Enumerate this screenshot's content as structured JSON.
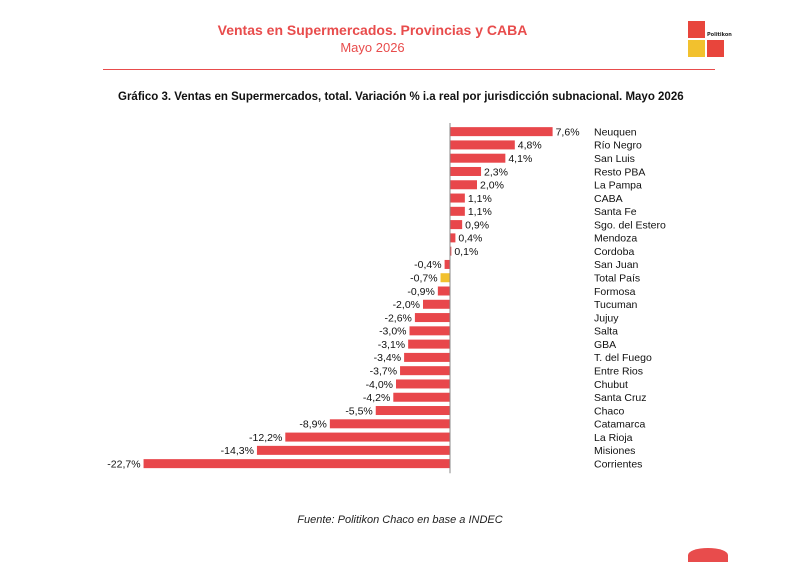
{
  "header": {
    "title": "Ventas en Supermercados. Provincias y CABA",
    "subtitle": "Mayo 2026",
    "logo_text": "Politikon"
  },
  "colors": {
    "accent": "#e84c4c",
    "bar": "#e8474b",
    "highlight": "#f2c12e"
  },
  "chart_data": {
    "type": "bar",
    "orientation": "horizontal",
    "title": "Gráfico 3. Ventas en Supermercados, total. Variación % i.a real por jurisdicción subnacional. Mayo 2026",
    "categories": [
      "Neuquen",
      "Río Negro",
      "San Luis",
      "Resto PBA",
      "La Pampa",
      "CABA",
      "Santa Fe",
      "Sgo. del Estero",
      "Mendoza",
      "Cordoba",
      "San Juan",
      "Total País",
      "Formosa",
      "Tucuman",
      "Jujuy",
      "Salta",
      "GBA",
      "T. del Fuego",
      "Entre Rios",
      "Chubut",
      "Santa Cruz",
      "Chaco",
      "Catamarca",
      "La Rioja",
      "Misiones",
      "Corrientes"
    ],
    "values": [
      7.6,
      4.8,
      4.1,
      2.3,
      2.0,
      1.1,
      1.1,
      0.9,
      0.4,
      0.1,
      -0.4,
      -0.7,
      -0.9,
      -2.0,
      -2.6,
      -3.0,
      -3.1,
      -3.4,
      -3.7,
      -4.0,
      -4.2,
      -5.5,
      -8.9,
      -12.2,
      -14.3,
      -22.7
    ],
    "value_labels": [
      "7,6%",
      "4,8%",
      "4,1%",
      "2,3%",
      "2,0%",
      "1,1%",
      "1,1%",
      "0,9%",
      "0,4%",
      "0,1%",
      "-0,4%",
      "-0,7%",
      "-0,9%",
      "-2,0%",
      "-2,6%",
      "-3,0%",
      "-3,1%",
      "-3,4%",
      "-3,7%",
      "-4,0%",
      "-4,2%",
      "-5,5%",
      "-8,9%",
      "-12,2%",
      "-14,3%",
      "-22,7%"
    ],
    "highlight_category": "Total País",
    "xlabel": "",
    "ylabel": "",
    "grid": false,
    "legend": "none"
  },
  "source": "Fuente: Politikon Chaco en base a INDEC"
}
